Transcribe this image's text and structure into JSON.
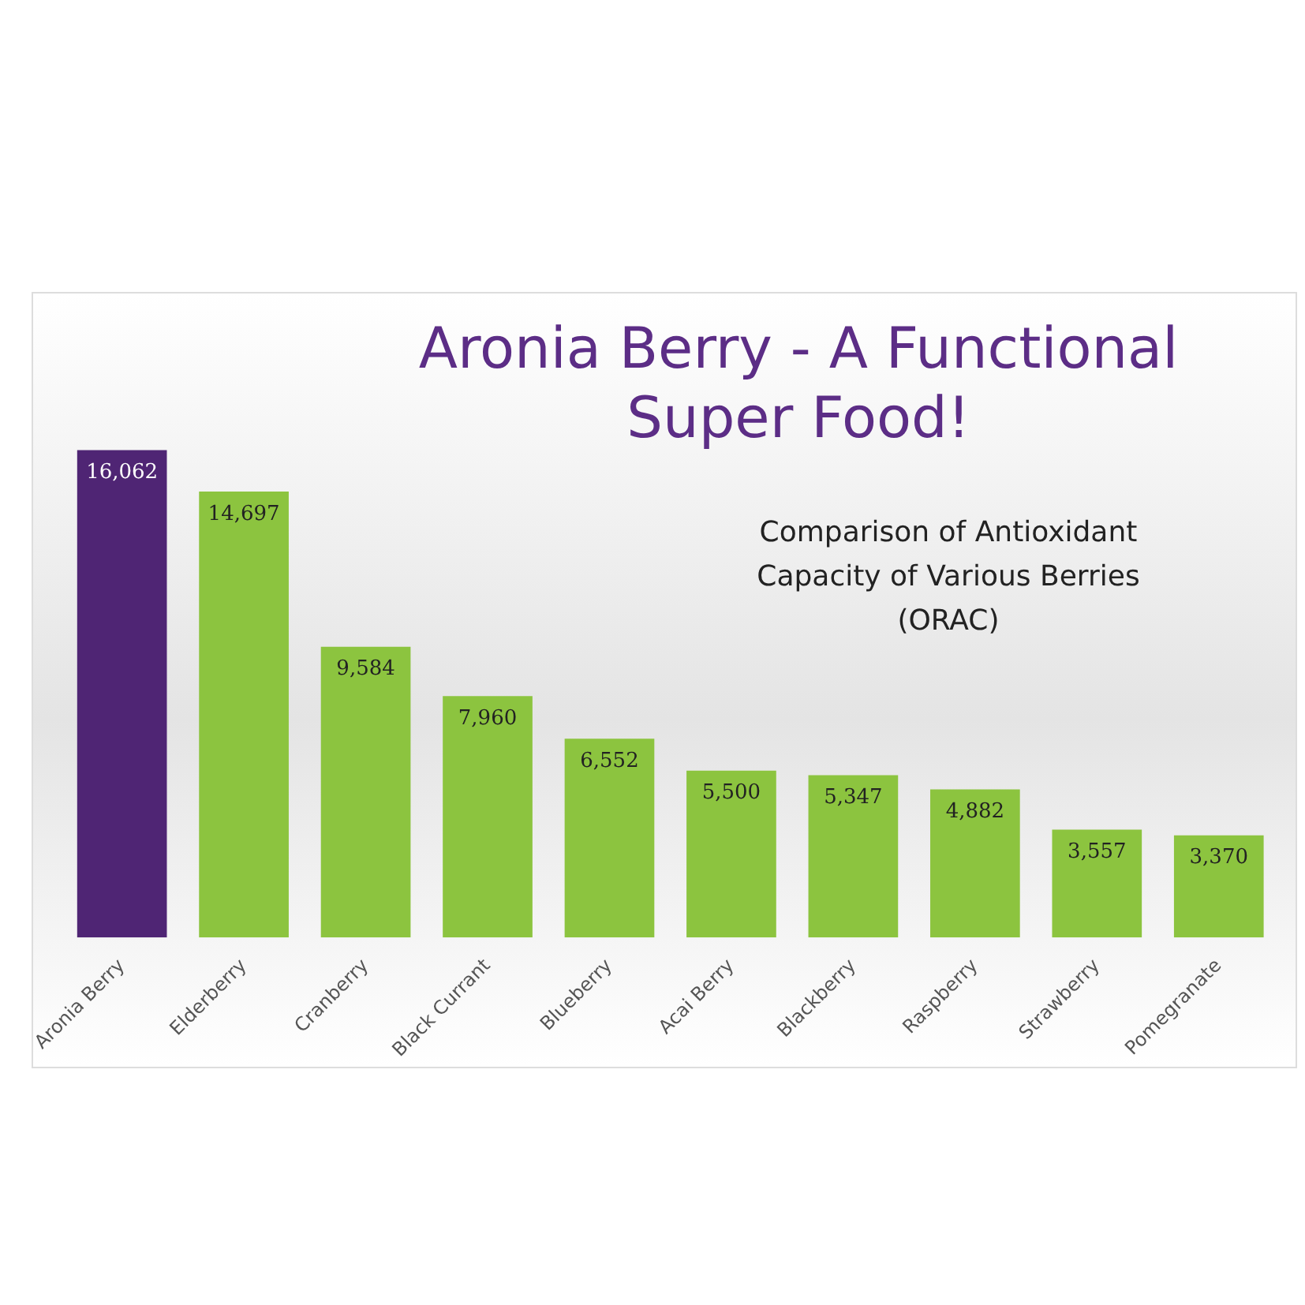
{
  "chart_data": {
    "type": "bar",
    "title": "Aronia Berry - A Functional Super Food!",
    "subtitle": "Comparison of Antioxidant Capacity of Various Berries (ORAC)",
    "categories": [
      "Aronia Berry",
      "Elderberry",
      "Cranberry",
      "Black Currant",
      "Blueberry",
      "Acai Berry",
      "Blackberry",
      "Raspberry",
      "Strawberry",
      "Pomegranate"
    ],
    "values": [
      16062,
      14697,
      9584,
      7960,
      6552,
      5500,
      5347,
      4882,
      3557,
      3370
    ],
    "colors": [
      "#4f2574",
      "#8cc43f",
      "#8cc43f",
      "#8cc43f",
      "#8cc43f",
      "#8cc43f",
      "#8cc43f",
      "#8cc43f",
      "#8cc43f",
      "#8cc43f"
    ],
    "value_labels": [
      "16,062",
      "14,697",
      "9,584",
      "7,960",
      "6,552",
      "5,500",
      "5,347",
      "4,882",
      "3,557",
      "3,370"
    ],
    "grid": false,
    "legend": false
  }
}
